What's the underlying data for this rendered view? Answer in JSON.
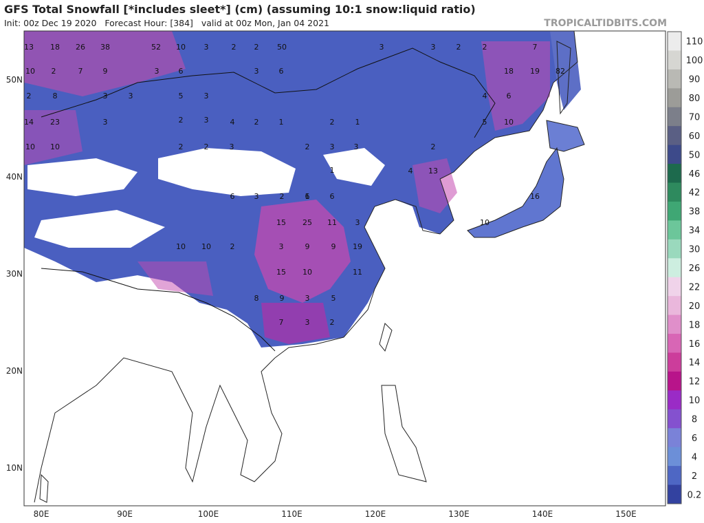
{
  "header": {
    "title": "GFS Total Snowfall [*includes sleet*] (cm) (assuming 10:1 snow:liquid ratio)",
    "subtitle": "Init: 00z Dec 19 2020   Forecast Hour: [384]   valid at 00z Mon, Jan 04 2021",
    "watermark": "TROPICALTIDBITS.COM"
  },
  "map": {
    "lat_labels": [
      "50N",
      "40N",
      "30N",
      "20N",
      "10N"
    ],
    "lon_labels": [
      "80E",
      "90E",
      "100E",
      "110E",
      "120E",
      "130E",
      "140E",
      "150E"
    ],
    "point_labels": [
      "13",
      "18",
      "26",
      "38",
      "52",
      "10",
      "3",
      "2",
      "2",
      "50",
      "10",
      "2",
      "7",
      "9",
      "3",
      "6",
      "3",
      "6",
      "2",
      "8",
      "3",
      "3",
      "5",
      "3",
      "3",
      "2",
      "14",
      "23",
      "3",
      "4",
      "2",
      "1",
      "10",
      "10",
      "2",
      "2",
      "3",
      "2",
      "3",
      "3",
      "2",
      "1",
      "1",
      "1",
      "6",
      "3",
      "2",
      "6",
      "6",
      "15",
      "25",
      "11",
      "3",
      "9",
      "10",
      "10",
      "2",
      "3",
      "9",
      "19",
      "15",
      "10",
      "11",
      "9",
      "3",
      "5",
      "8",
      "7",
      "3",
      "2",
      "3",
      "3",
      "2",
      "2",
      "7",
      "18",
      "19",
      "82",
      "6",
      "4",
      "10",
      "5",
      "2",
      "4",
      "13",
      "16",
      "10"
    ]
  },
  "legend": {
    "labels": [
      "110",
      "100",
      "90",
      "80",
      "70",
      "60",
      "50",
      "46",
      "42",
      "38",
      "34",
      "30",
      "26",
      "22",
      "20",
      "18",
      "16",
      "14",
      "12",
      "10",
      "8",
      "6",
      "4",
      "2",
      "0.2"
    ],
    "colors": [
      "#ececec",
      "#d6d6d2",
      "#b9b9b4",
      "#9c9c98",
      "#7c7f8a",
      "#5a5f84",
      "#3d4a8a",
      "#1d6a4d",
      "#2e8a5e",
      "#3fa774",
      "#6cc69a",
      "#9ad9bd",
      "#cdeee0",
      "#f0d3ea",
      "#eab7dc",
      "#e08fca",
      "#d866b5",
      "#cc3d9b",
      "#b8148a",
      "#9a2bc6",
      "#8451cf",
      "#7a82d8",
      "#6c8fd8",
      "#4e67c4",
      "#3342a0"
    ]
  }
}
